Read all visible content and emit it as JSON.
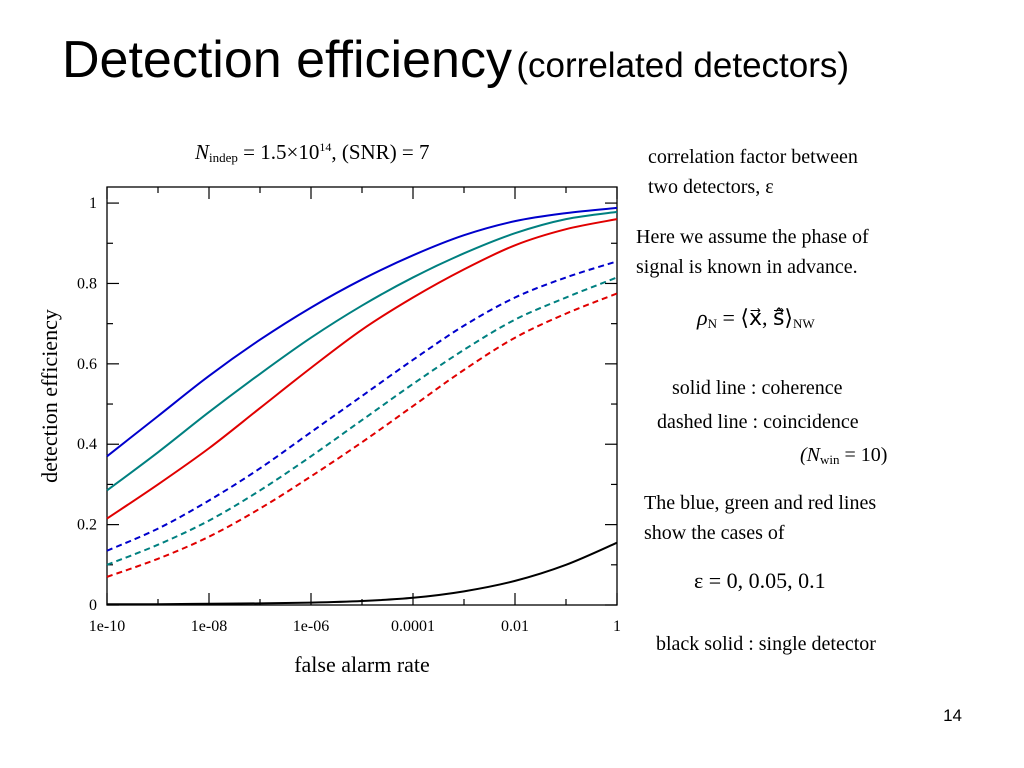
{
  "slide": {
    "title": "Detection efficiency",
    "subtitle": "(correlated detectors)",
    "page_number": "14"
  },
  "header_formula": {
    "symbol": "N",
    "subscript": "indep",
    "rhs": "= 1.5×10",
    "exponent": "14",
    "tail": ", (SNR) = 7"
  },
  "notes": {
    "corr_line1": "correlation factor between",
    "corr_line2": "two detectors,  ε",
    "assume_line1": "Here we assume the phase of",
    "assume_line2": "signal is known in advance.",
    "rho_formula": "ρ",
    "rho_sub": "N",
    "rho_rhs": "= ⟨x⃗, ŝ⃗⟩",
    "rho_rhs_sub": "NW",
    "solid": "solid line  : coherence",
    "dashed": "dashed line : coincidence",
    "nwin_open": "(N",
    "nwin_sub": "win",
    "nwin_rest": "= 10)",
    "cases_line1": "The blue, green and red lines",
    "cases_line2": "show the cases of",
    "eps_formula": "ε = 0,  0.05,  0.1",
    "black": "black solid : single detector"
  },
  "chart_data": {
    "type": "line",
    "xlabel": "false alarm rate",
    "ylabel": "detection efficiency",
    "x_scale": "log",
    "xlim": [
      1e-10,
      1
    ],
    "ylim": [
      0,
      1.04
    ],
    "x_ticks": [
      1e-10,
      1e-08,
      1e-06,
      0.0001,
      0.01,
      1
    ],
    "x_tick_labels": [
      "1e-10",
      "1e-08",
      "1e-06",
      "0.0001",
      "0.01",
      "1"
    ],
    "y_ticks": [
      0,
      0.2,
      0.4,
      0.6,
      0.8,
      1
    ],
    "y_tick_labels": [
      "0",
      "0.2",
      "0.4",
      "0.6",
      "0.8",
      "1"
    ],
    "x": [
      1e-10,
      1e-09,
      1e-08,
      1e-07,
      1e-06,
      1e-05,
      0.0001,
      0.001,
      0.01,
      0.1,
      1
    ],
    "series": [
      {
        "color": "#0000cc",
        "style": "solid",
        "values": [
          0.37,
          0.47,
          0.57,
          0.66,
          0.74,
          0.81,
          0.87,
          0.92,
          0.955,
          0.975,
          0.988
        ]
      },
      {
        "color": "#008080",
        "style": "solid",
        "values": [
          0.285,
          0.38,
          0.48,
          0.575,
          0.665,
          0.745,
          0.815,
          0.875,
          0.925,
          0.96,
          0.978
        ]
      },
      {
        "color": "#e00000",
        "style": "solid",
        "values": [
          0.215,
          0.3,
          0.39,
          0.49,
          0.59,
          0.685,
          0.765,
          0.835,
          0.895,
          0.935,
          0.96
        ]
      },
      {
        "color": "#0000cc",
        "style": "dashed",
        "values": [
          0.135,
          0.19,
          0.26,
          0.34,
          0.43,
          0.52,
          0.61,
          0.695,
          0.765,
          0.815,
          0.855
        ]
      },
      {
        "color": "#008080",
        "style": "dashed",
        "values": [
          0.1,
          0.15,
          0.21,
          0.285,
          0.37,
          0.46,
          0.55,
          0.635,
          0.71,
          0.765,
          0.815
        ]
      },
      {
        "color": "#e00000",
        "style": "dashed",
        "values": [
          0.07,
          0.115,
          0.17,
          0.24,
          0.32,
          0.405,
          0.495,
          0.585,
          0.665,
          0.725,
          0.775
        ]
      },
      {
        "color": "#000000",
        "style": "solid",
        "values": [
          0.002,
          0.002,
          0.003,
          0.004,
          0.006,
          0.01,
          0.018,
          0.034,
          0.06,
          0.1,
          0.155
        ]
      }
    ]
  }
}
